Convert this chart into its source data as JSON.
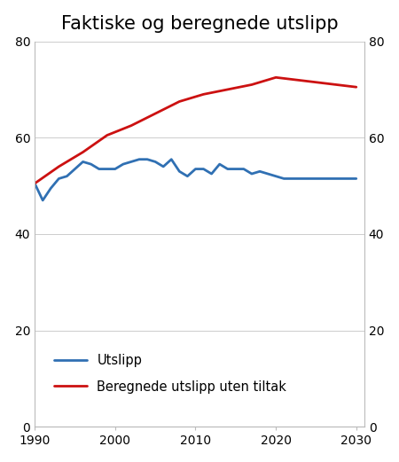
{
  "title": "Faktiske og beregnede utslipp",
  "blue_label": "Utslipp",
  "red_label": "Beregnede utslipp uten tiltak",
  "blue_color": "#3070b3",
  "red_color": "#cc1111",
  "ylim": [
    0,
    80
  ],
  "yticks": [
    0,
    20,
    40,
    60,
    80
  ],
  "xlim": [
    1990,
    2031
  ],
  "xticks": [
    1990,
    2000,
    2010,
    2020,
    2030
  ],
  "xticklabels": [
    "1990",
    "2000",
    "2010",
    "2020",
    "2030"
  ],
  "blue_x": [
    1990,
    1991,
    1992,
    1993,
    1994,
    1995,
    1996,
    1997,
    1998,
    1999,
    2000,
    2001,
    2002,
    2003,
    2004,
    2005,
    2006,
    2007,
    2008,
    2009,
    2010,
    2011,
    2012,
    2013,
    2014,
    2015,
    2016,
    2017,
    2018,
    2019,
    2020,
    2021,
    2022,
    2023,
    2024,
    2025,
    2026,
    2027,
    2028,
    2029,
    2030
  ],
  "blue_y": [
    50.5,
    47.0,
    49.5,
    51.5,
    52.0,
    53.5,
    55.0,
    54.5,
    53.5,
    53.5,
    53.5,
    54.5,
    55.0,
    55.5,
    55.5,
    55.0,
    54.0,
    55.5,
    53.0,
    52.0,
    53.5,
    53.5,
    52.5,
    54.5,
    53.5,
    53.5,
    53.5,
    52.5,
    53.0,
    52.5,
    52.0,
    51.5,
    51.5,
    51.5,
    51.5,
    51.5,
    51.5,
    51.5,
    51.5,
    51.5,
    51.5
  ],
  "red_x": [
    1990,
    1993,
    1996,
    1999,
    2002,
    2005,
    2008,
    2011,
    2014,
    2017,
    2020,
    2025,
    2030
  ],
  "red_y": [
    50.5,
    54.0,
    57.0,
    60.5,
    62.5,
    65.0,
    67.5,
    69.0,
    70.0,
    71.0,
    72.5,
    71.5,
    70.5
  ],
  "line_width": 2.0,
  "title_fontsize": 15,
  "tick_fontsize": 10,
  "legend_fontsize": 10.5,
  "background_color": "#ffffff",
  "grid_color": "#cccccc",
  "spine_color": "#bbbbbb"
}
